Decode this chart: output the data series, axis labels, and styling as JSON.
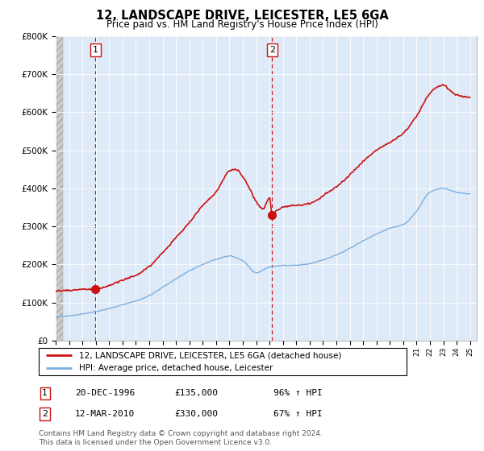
{
  "title": "12, LANDSCAPE DRIVE, LEICESTER, LE5 6GA",
  "subtitle": "Price paid vs. HM Land Registry's House Price Index (HPI)",
  "footer": "Contains HM Land Registry data © Crown copyright and database right 2024.\nThis data is licensed under the Open Government Licence v3.0.",
  "legend_line1": "12, LANDSCAPE DRIVE, LEICESTER, LE5 6GA (detached house)",
  "legend_line2": "HPI: Average price, detached house, Leicester",
  "sale1_date": "20-DEC-1996",
  "sale1_price": 135000,
  "sale1_note": "96% ↑ HPI",
  "sale2_date": "12-MAR-2010",
  "sale2_price": 330000,
  "sale2_note": "67% ↑ HPI",
  "ylim": [
    0,
    800000
  ],
  "hpi_color": "#7aafe0",
  "price_color": "#cc1111",
  "vline_color": "#cc1111",
  "bg_plot": "#deeaf7",
  "marker_size": 7,
  "sale1_x": 1996.97,
  "sale2_x": 2010.19
}
